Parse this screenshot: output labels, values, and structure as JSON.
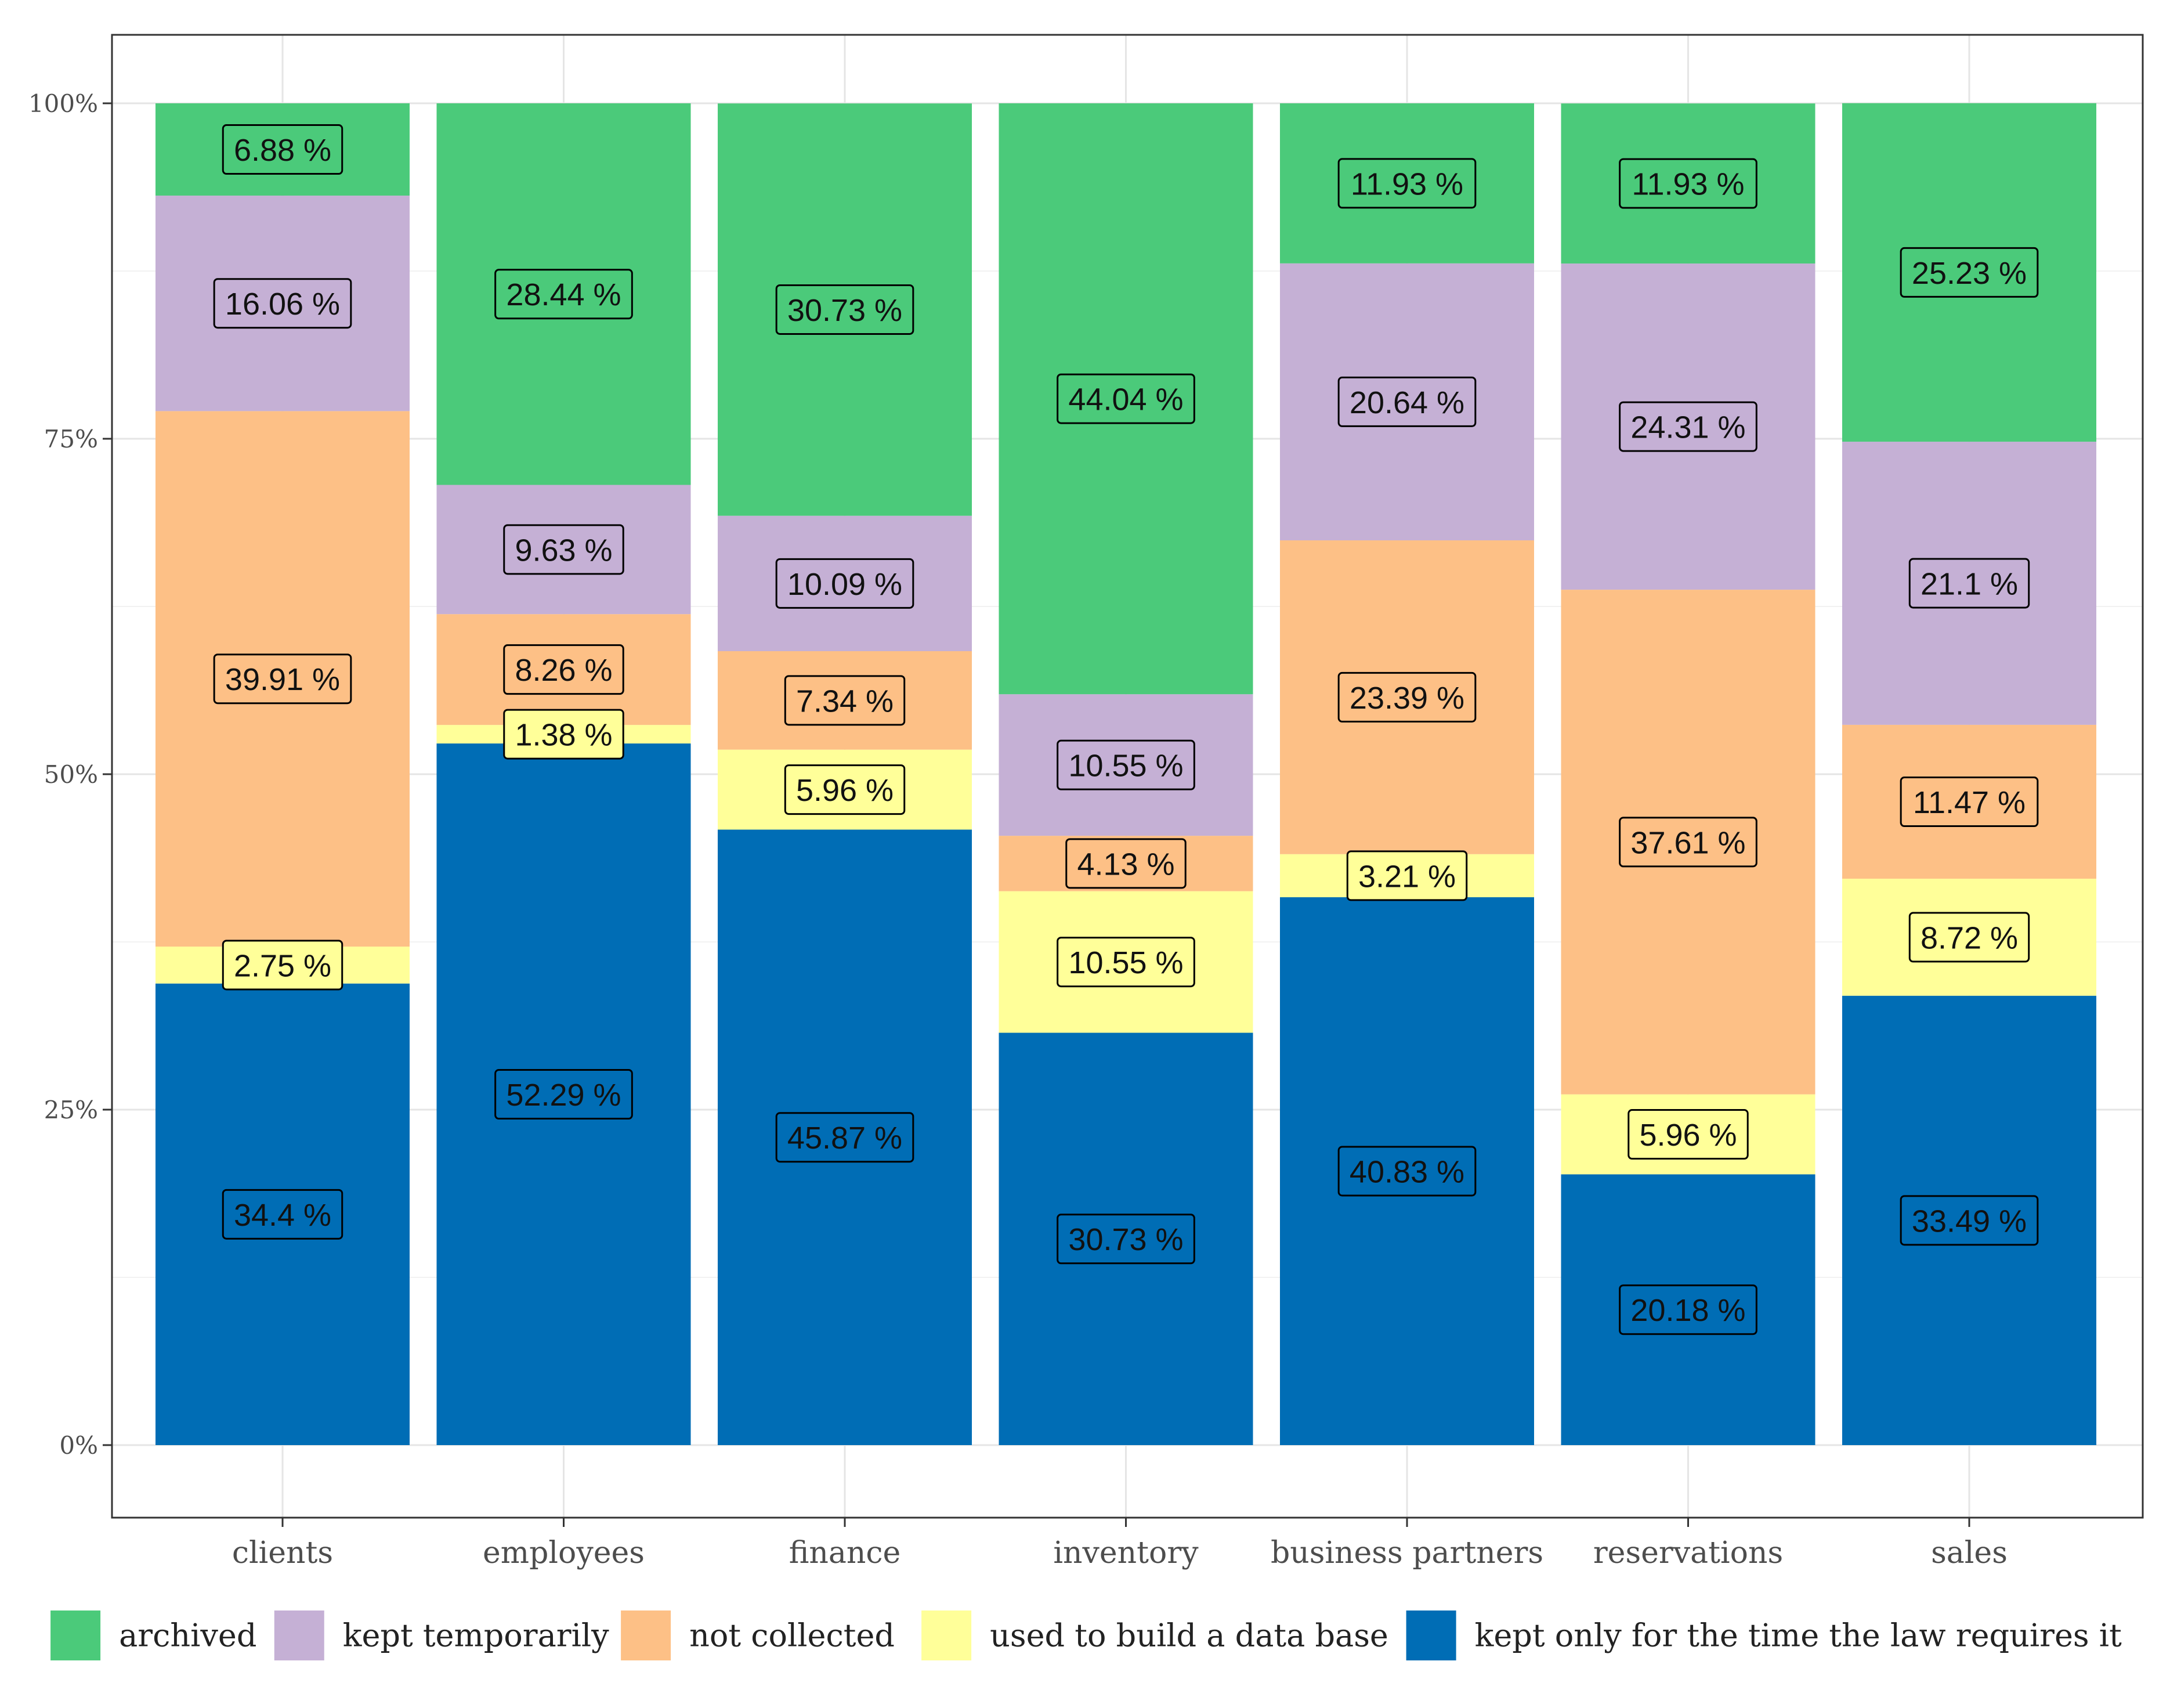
{
  "chart_data": {
    "type": "bar",
    "stacked": true,
    "percent_stacked": true,
    "title": "",
    "xlabel": "",
    "ylabel": "",
    "ylim": [
      0,
      100
    ],
    "y_ticks": [
      0,
      25,
      50,
      75,
      100
    ],
    "y_tick_labels": [
      "0%",
      "25%",
      "50%",
      "75%",
      "100%"
    ],
    "grid": true,
    "legend_position": "bottom",
    "categories": [
      "clients",
      "employees",
      "finance",
      "inventory",
      "business partners",
      "reservations",
      "sales"
    ],
    "series": [
      {
        "name": "kept only for the time the law requires it",
        "color": "#006db5",
        "values": [
          34.4,
          52.29,
          45.87,
          30.73,
          40.83,
          20.18,
          33.49
        ],
        "labels": [
          "34.4 %",
          "52.29 %",
          "45.87 %",
          "30.73 %",
          "40.83 %",
          "20.18 %",
          "33.49 %"
        ]
      },
      {
        "name": "used to build a data base",
        "color": "#ffff99",
        "values": [
          2.75,
          1.38,
          5.96,
          10.55,
          3.21,
          5.96,
          8.72
        ],
        "labels": [
          "2.75 %",
          "1.38 %",
          "5.96 %",
          "10.55 %",
          "3.21 %",
          "5.96 %",
          "8.72 %"
        ]
      },
      {
        "name": "not collected",
        "color": "#fdc086",
        "values": [
          39.91,
          8.26,
          7.34,
          4.13,
          23.39,
          37.61,
          11.47
        ],
        "labels": [
          "39.91 %",
          "8.26 %",
          "7.34 %",
          "4.13 %",
          "23.39 %",
          "37.61 %",
          "11.47 %"
        ]
      },
      {
        "name": "kept temporarily",
        "color": "#c5b0d5",
        "values": [
          16.06,
          9.63,
          10.09,
          10.55,
          20.64,
          24.31,
          21.1
        ],
        "labels": [
          "16.06 %",
          "9.63 %",
          "10.09 %",
          "10.55 %",
          "20.64 %",
          "24.31 %",
          "21.1 %"
        ]
      },
      {
        "name": "archived",
        "color": "#4bca7a",
        "values": [
          6.88,
          28.44,
          30.73,
          44.04,
          11.93,
          11.93,
          25.23
        ],
        "labels": [
          "6.88 %",
          "28.44 %",
          "30.73 %",
          "44.04 %",
          "11.93 %",
          "11.93 %",
          "25.23 %"
        ]
      }
    ],
    "legend": [
      {
        "name": "archived",
        "color": "#4bca7a"
      },
      {
        "name": "kept temporarily",
        "color": "#c5b0d5"
      },
      {
        "name": "not collected",
        "color": "#fdc086"
      },
      {
        "name": "used to build a data base",
        "color": "#ffff99"
      },
      {
        "name": "kept only for the time the law requires it",
        "color": "#006db5"
      }
    ]
  }
}
